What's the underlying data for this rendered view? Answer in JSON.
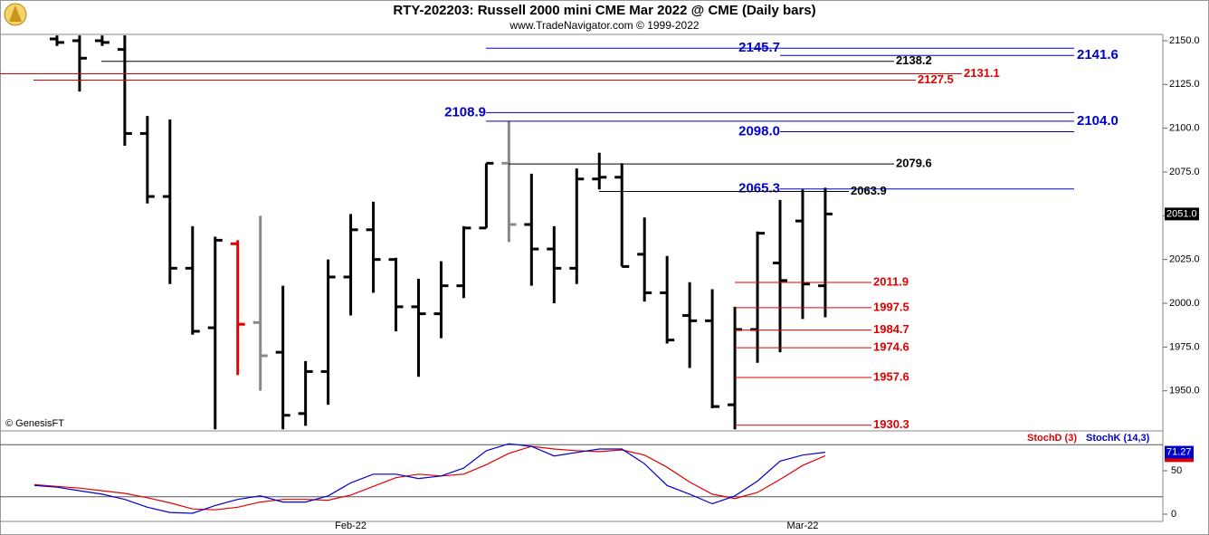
{
  "chart_data": [
    {
      "type": "ohlc",
      "title": "RTY-202203:  Russell 2000 mini CME Mar 2022 @ CME  (Daily bars)",
      "subtitle": "www.TradeNavigator.com © 1999-2022",
      "watermark": "© GenesisFT",
      "categories": [
        null,
        null,
        null,
        null,
        null,
        null,
        null,
        null,
        null,
        null,
        null,
        null,
        null,
        null,
        "Feb-22",
        null,
        null,
        null,
        null,
        null,
        null,
        null,
        null,
        null,
        null,
        null,
        null,
        null,
        null,
        null,
        null,
        null,
        null,
        null,
        "Mar-22",
        null
      ],
      "open": [
        null,
        2151,
        2150,
        2150,
        2145,
        2097,
        2061,
        2020,
        1986,
        2034,
        1989,
        1972,
        1937,
        1961,
        2015,
        2042,
        2025,
        1998,
        1994,
        2010,
        2043,
        2080,
        2045,
        2031,
        2020,
        2071,
        2072,
        2028,
        2006,
        1993,
        1990,
        1942,
        1985,
        2023,
        2047,
        2010
      ],
      "high": [
        null,
        2153,
        2153,
        2153,
        2153,
        2107,
        2105,
        2044,
        2038,
        2036,
        2050,
        2010,
        1967,
        2025,
        2051,
        2058,
        2026,
        2014,
        2024,
        2044,
        2080,
        2104,
        2074,
        2044,
        2077,
        2086,
        2080,
        2049,
        2027,
        2012,
        2008,
        1998,
        2041,
        2059,
        2065,
        2066
      ],
      "low": [
        null,
        2147,
        2121,
        2147,
        2090,
        2057,
        2011,
        1982,
        1928,
        1959,
        1950,
        1928,
        1930,
        1942,
        1993,
        2006,
        1984,
        1958,
        1980,
        2003,
        2043,
        2035,
        2010,
        2000,
        2011,
        2065,
        2021,
        2001,
        1977,
        1963,
        1940,
        1928,
        1966,
        1972,
        1991,
        1992
      ],
      "close": [
        null,
        2149,
        2140,
        2149,
        2097,
        2061,
        2020,
        1984,
        2036,
        1988,
        1970,
        1936,
        1961,
        2015,
        2042,
        2025,
        1998,
        1994,
        2010,
        2043,
        2080,
        2045,
        2031,
        2020,
        2071,
        2072,
        2021,
        2006,
        1979,
        1990,
        1941,
        1985,
        2040,
        2013,
        2011,
        2051
      ],
      "colors": [
        null,
        "#000000",
        "#000000",
        "#000000",
        "#000000",
        "#000000",
        "#000000",
        "#000000",
        "#000000",
        "#e00000",
        "#888888",
        "#000000",
        "#000000",
        "#000000",
        "#000000",
        "#000000",
        "#000000",
        "#000000",
        "#000000",
        "#000000",
        "#000000",
        "#888888",
        "#000000",
        "#000000",
        "#000000",
        "#000000",
        "#000000",
        "#000000",
        "#000000",
        "#000000",
        "#000000",
        "#000000",
        "#000000",
        "#000000",
        "#000000",
        "#000000"
      ],
      "last_label": "2051.0",
      "ylim": [
        1927.6,
        2153.6
      ],
      "yticks": [
        {
          "value": 1950,
          "label": "1950.0"
        },
        {
          "value": 1975,
          "label": "1975.0"
        },
        {
          "value": 2000,
          "label": "2000.0"
        },
        {
          "value": 2025,
          "label": "2025.0"
        },
        {
          "value": 2050,
          "label": "2050.0"
        },
        {
          "value": 2075,
          "label": "2075.0"
        },
        {
          "value": 2100,
          "label": "2100.0"
        },
        {
          "value": 2125,
          "label": "2125.0"
        },
        {
          "value": 2150,
          "label": "2150.0"
        }
      ],
      "levels": [
        {
          "value": 2145.7,
          "label": "2145.7",
          "color": "#0000cc"
        },
        {
          "value": 2141.6,
          "label": "2141.6",
          "color": "#0000cc"
        },
        {
          "value": 2138.2,
          "label": "2138.2",
          "color": "#000000"
        },
        {
          "value": 2131.1,
          "label": "2131.1",
          "color": "#e00000"
        },
        {
          "value": 2127.5,
          "label": "2127.5",
          "color": "#e00000"
        },
        {
          "value": 2108.9,
          "label": "2108.9",
          "color": "#0000cc"
        },
        {
          "value": 2104.0,
          "label": "2104.0",
          "color": "#0000cc"
        },
        {
          "value": 2098.0,
          "label": "2098.0",
          "color": "#0000cc"
        },
        {
          "value": 2079.6,
          "label": "2079.6",
          "color": "#000000"
        },
        {
          "value": 2065.3,
          "label": "2065.3",
          "color": "#0000cc"
        },
        {
          "value": 2063.9,
          "label": "2063.9",
          "color": "#000000"
        },
        {
          "value": 2011.9,
          "label": "2011.9",
          "color": "#e00000"
        },
        {
          "value": 1997.5,
          "label": "1997.5",
          "color": "#e00000"
        },
        {
          "value": 1984.7,
          "label": "1984.7",
          "color": "#e00000"
        },
        {
          "value": 1974.6,
          "label": "1974.6",
          "color": "#e00000"
        },
        {
          "value": 1957.6,
          "label": "1957.6",
          "color": "#e00000"
        },
        {
          "value": 1930.3,
          "label": "1930.3",
          "color": "#e00000"
        }
      ]
    },
    {
      "type": "line",
      "series": [
        {
          "name": "StochD (3)",
          "color": "#e00000",
          "values": [
            34,
            32,
            30,
            27,
            24,
            19,
            13,
            6,
            5,
            8,
            14,
            17,
            17,
            16,
            22,
            32,
            42,
            46,
            44,
            46,
            57,
            70,
            78,
            75,
            73,
            72,
            74,
            68,
            54,
            37,
            23,
            18,
            25,
            40,
            56,
            67.28
          ]
        },
        {
          "name": "StochK (14,3)",
          "color": "#0000cc",
          "values": [
            33,
            31,
            27,
            23,
            17,
            8,
            2,
            1,
            10,
            17,
            21,
            14,
            14,
            21,
            36,
            46,
            46,
            41,
            44,
            53,
            73,
            81,
            78,
            67,
            71,
            75,
            75,
            58,
            33,
            23,
            12,
            21,
            38,
            61,
            68,
            71.27
          ]
        }
      ],
      "ylim": [
        -7.3,
        93.75
      ],
      "yticks": [
        0,
        50
      ],
      "hlines": [
        20,
        80
      ]
    }
  ]
}
